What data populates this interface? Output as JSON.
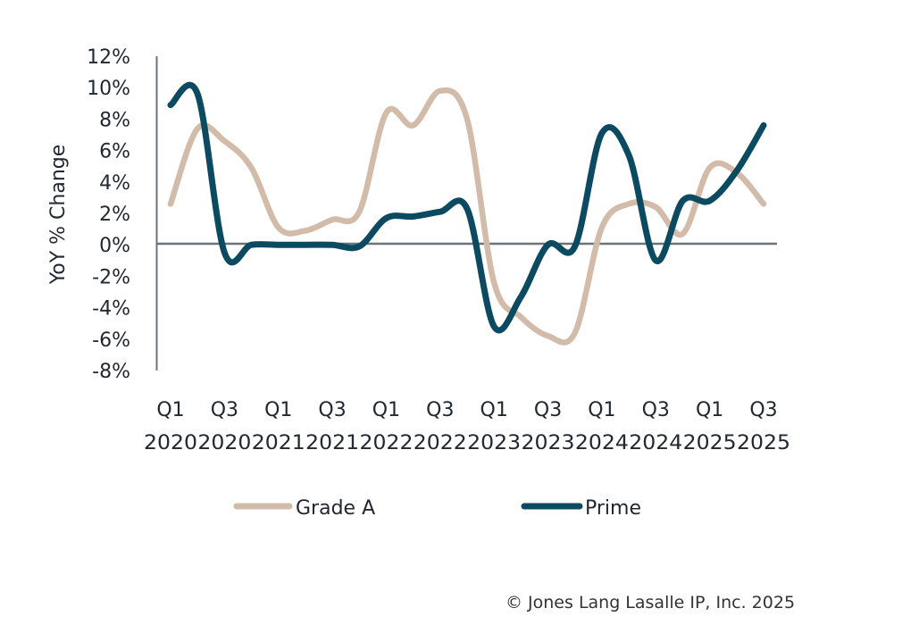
{
  "chart_data": {
    "type": "line",
    "title": "",
    "xlabel": "",
    "ylabel": "YoY % Change",
    "ylim": [
      -8,
      12
    ],
    "y_ticks": [
      "12%",
      "10%",
      "8%",
      "6%",
      "4%",
      "2%",
      "0%",
      "-2%",
      "-4%",
      "-6%",
      "-8%"
    ],
    "y_tick_values": [
      12,
      10,
      8,
      6,
      4,
      2,
      0,
      -2,
      -4,
      -6,
      -8
    ],
    "x": [
      "Q1 2020",
      "Q2 2020",
      "Q3 2020",
      "Q4 2020",
      "Q1 2021",
      "Q2 2021",
      "Q3 2021",
      "Q4 2021",
      "Q1 2022",
      "Q2 2022",
      "Q3 2022",
      "Q4 2022",
      "Q1 2023",
      "Q2 2023",
      "Q3 2023",
      "Q4 2023",
      "Q1 2024",
      "Q2 2024",
      "Q3 2024",
      "Q4 2024",
      "Q1 2025",
      "Q2 2025",
      "Q3 2025"
    ],
    "x_tick_labels": [
      {
        "quarter": "Q1",
        "year": "2020",
        "index": 0
      },
      {
        "quarter": "Q3",
        "year": "2020",
        "index": 2
      },
      {
        "quarter": "Q1",
        "year": "2021",
        "index": 4
      },
      {
        "quarter": "Q3",
        "year": "2021",
        "index": 6
      },
      {
        "quarter": "Q1",
        "year": "2022",
        "index": 8
      },
      {
        "quarter": "Q3",
        "year": "2022",
        "index": 10
      },
      {
        "quarter": "Q1",
        "year": "2023",
        "index": 12
      },
      {
        "quarter": "Q3",
        "year": "2023",
        "index": 14
      },
      {
        "quarter": "Q1",
        "year": "2024",
        "index": 16
      },
      {
        "quarter": "Q3",
        "year": "2024",
        "index": 18
      },
      {
        "quarter": "Q1",
        "year": "2025",
        "index": 20
      },
      {
        "quarter": "Q3",
        "year": "2025",
        "index": 22
      }
    ],
    "series": [
      {
        "name": "Grade A",
        "color": "#d2bba9",
        "values": [
          2.6,
          7.4,
          6.6,
          4.9,
          1.1,
          0.9,
          1.6,
          2.1,
          8.4,
          7.6,
          9.8,
          8.0,
          -2.4,
          -4.6,
          -5.8,
          -5.6,
          1.1,
          2.6,
          2.4,
          0.7,
          4.9,
          4.6,
          2.6
        ]
      },
      {
        "name": "Prime",
        "color": "#0b4a61",
        "values": [
          8.9,
          9.6,
          -0.5,
          0.0,
          0.0,
          0.0,
          0.0,
          -0.1,
          1.7,
          1.8,
          2.1,
          2.3,
          -5.2,
          -3.3,
          0.0,
          -0.1,
          7.1,
          5.7,
          -1.0,
          2.8,
          2.8,
          4.7,
          7.6
        ]
      }
    ],
    "legend": "bottom",
    "grid": false,
    "zero_line": true
  },
  "footer": {
    "copyright": "© Jones Lang Lasalle IP, Inc. 2025"
  }
}
